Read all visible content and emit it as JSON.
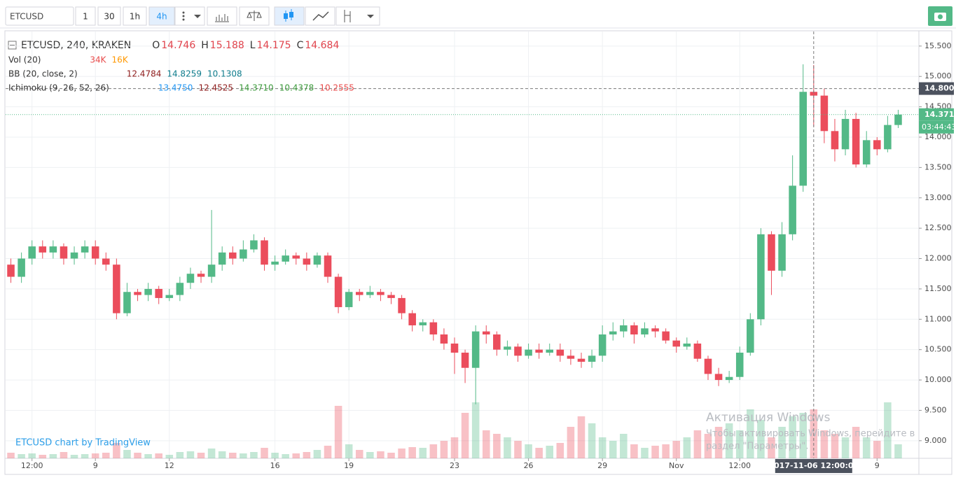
{
  "toolbar": {
    "symbol": "ETCUSD",
    "intervals": [
      "1",
      "30",
      "1h",
      "4h"
    ],
    "active_interval": 3
  },
  "chart_data": {
    "type": "candlestick",
    "title": "ETCUSD, 240, KRAKEN",
    "ohlc_letters": [
      "O",
      "H",
      "L",
      "C"
    ],
    "ohlc_values": [
      14.746,
      15.188,
      14.175,
      14.684
    ],
    "indicators": [
      {
        "name": "Vol (20)",
        "values": [
          "34K",
          "16K"
        ],
        "colors": [
          "#e84b4b",
          "#ff9800"
        ]
      },
      {
        "name": "BB (20, close, 2)",
        "values": [
          "12.4784",
          "14.8259",
          "10.1308"
        ],
        "colors": [
          "#8e1c1c",
          "#0f7c8c",
          "#0f7c8c"
        ]
      },
      {
        "name": "Ichimoku (9, 26, 52, 26)",
        "values": [
          "13.4750",
          "12.4525",
          "14.3710",
          "10.4378",
          "10.2555"
        ],
        "colors": [
          "#2196f3",
          "#8e1c1c",
          "#3c9a3c",
          "#3c9a3c",
          "#e84b4b"
        ]
      }
    ],
    "categories": [
      null,
      null,
      "12:00",
      null,
      null,
      null,
      null,
      null,
      "9",
      null,
      null,
      null,
      null,
      null,
      null,
      "12",
      null,
      null,
      null,
      null,
      null,
      null,
      null,
      null,
      null,
      "16",
      null,
      null,
      null,
      null,
      null,
      null,
      "19",
      null,
      null,
      null,
      null,
      null,
      null,
      null,
      null,
      null,
      "23",
      null,
      null,
      null,
      null,
      null,
      null,
      "26",
      null,
      null,
      null,
      null,
      null,
      null,
      "29",
      null,
      null,
      null,
      null,
      null,
      null,
      "Nov",
      null,
      null,
      null,
      null,
      null,
      "12:00",
      null,
      null,
      null,
      null,
      null,
      null,
      "2017-11-06 12:00:00",
      null,
      null,
      null,
      null,
      null,
      "9",
      null,
      null
    ],
    "open": [
      11.9,
      11.7,
      12.0,
      12.2,
      12.1,
      12.2,
      12.0,
      12.1,
      12.2,
      12.0,
      11.9,
      11.1,
      11.45,
      11.4,
      11.5,
      11.35,
      11.4,
      11.6,
      11.75,
      11.7,
      11.9,
      12.1,
      12.0,
      12.15,
      12.3,
      11.9,
      11.95,
      12.05,
      12.0,
      11.9,
      12.05,
      11.7,
      11.2,
      11.45,
      11.4,
      11.45,
      11.4,
      11.35,
      11.1,
      10.9,
      10.95,
      10.75,
      10.6,
      10.45,
      10.2,
      10.8,
      10.75,
      10.5,
      10.55,
      10.4,
      10.5,
      10.45,
      10.5,
      10.4,
      10.35,
      10.3,
      10.4,
      10.75,
      10.8,
      10.9,
      10.75,
      10.85,
      10.8,
      10.65,
      10.55,
      10.6,
      10.35,
      10.1,
      10.0,
      10.05,
      10.45,
      11.0,
      12.4,
      11.8,
      12.4,
      13.2,
      14.746,
      14.684,
      14.1,
      13.8,
      14.3,
      13.55,
      13.95,
      13.8,
      14.2
    ],
    "high": [
      12.0,
      12.1,
      12.3,
      12.3,
      12.3,
      12.25,
      12.2,
      12.3,
      12.3,
      12.1,
      12.0,
      11.6,
      11.5,
      11.6,
      11.55,
      11.5,
      11.7,
      11.85,
      11.8,
      12.8,
      12.2,
      12.2,
      12.3,
      12.4,
      12.35,
      12.05,
      12.15,
      12.1,
      12.1,
      12.1,
      12.1,
      11.75,
      11.5,
      11.5,
      11.55,
      11.5,
      11.45,
      11.4,
      11.15,
      11.0,
      11.0,
      10.85,
      10.7,
      10.5,
      10.9,
      10.9,
      10.8,
      10.65,
      10.6,
      10.6,
      10.6,
      10.6,
      10.6,
      10.5,
      10.45,
      10.5,
      10.9,
      10.95,
      11.0,
      10.95,
      10.95,
      10.9,
      10.85,
      10.7,
      10.7,
      10.65,
      10.4,
      10.2,
      10.15,
      10.55,
      11.1,
      12.5,
      12.45,
      12.6,
      13.7,
      15.2,
      15.188,
      14.8,
      14.3,
      14.45,
      14.4,
      14.1,
      14.0,
      14.35,
      14.45
    ],
    "low": [
      11.6,
      11.6,
      11.9,
      12.0,
      12.0,
      11.9,
      11.9,
      12.0,
      11.9,
      11.8,
      11.0,
      11.05,
      11.3,
      11.3,
      11.25,
      11.3,
      11.3,
      11.5,
      11.6,
      11.6,
      11.8,
      11.9,
      11.95,
      12.1,
      11.8,
      11.8,
      11.9,
      11.9,
      11.8,
      11.85,
      11.6,
      11.1,
      11.15,
      11.3,
      11.35,
      11.3,
      11.25,
      11.0,
      10.8,
      10.8,
      10.65,
      10.5,
      10.1,
      9.95,
      9.6,
      10.6,
      10.4,
      10.4,
      10.3,
      10.35,
      10.35,
      10.4,
      10.3,
      10.25,
      10.2,
      10.2,
      10.3,
      10.65,
      10.7,
      10.6,
      10.7,
      10.7,
      10.6,
      10.45,
      10.5,
      10.3,
      10.0,
      9.9,
      9.95,
      10.0,
      10.4,
      10.9,
      11.4,
      11.7,
      12.3,
      13.1,
      14.175,
      13.9,
      13.6,
      13.7,
      13.5,
      13.5,
      13.7,
      13.75,
      14.15
    ],
    "close": [
      11.7,
      12.0,
      12.2,
      12.1,
      12.2,
      12.0,
      12.1,
      12.2,
      12.0,
      11.9,
      11.1,
      11.45,
      11.4,
      11.5,
      11.35,
      11.4,
      11.6,
      11.75,
      11.7,
      11.9,
      12.1,
      12.0,
      12.15,
      12.3,
      11.9,
      11.95,
      12.05,
      12.0,
      11.9,
      12.05,
      11.7,
      11.2,
      11.45,
      11.4,
      11.45,
      11.4,
      11.35,
      11.1,
      10.9,
      10.95,
      10.75,
      10.6,
      10.45,
      10.2,
      10.8,
      10.75,
      10.5,
      10.55,
      10.4,
      10.5,
      10.45,
      10.5,
      10.4,
      10.35,
      10.3,
      10.4,
      10.75,
      10.8,
      10.9,
      10.75,
      10.85,
      10.8,
      10.65,
      10.55,
      10.6,
      10.35,
      10.1,
      10.0,
      10.05,
      10.45,
      11.0,
      12.4,
      11.8,
      12.4,
      13.2,
      14.746,
      14.684,
      14.1,
      13.8,
      14.3,
      13.55,
      13.95,
      13.8,
      14.2,
      14.371
    ],
    "volume": [
      8000,
      6000,
      7000,
      5000,
      6000,
      9000,
      5000,
      6000,
      7000,
      8000,
      22000,
      12000,
      8000,
      6000,
      7000,
      5000,
      9000,
      10000,
      8000,
      14000,
      10000,
      8000,
      7000,
      9000,
      15000,
      8000,
      6000,
      7000,
      9000,
      12000,
      18000,
      75000,
      20000,
      12000,
      9000,
      10000,
      8000,
      14000,
      16000,
      15000,
      20000,
      25000,
      30000,
      65000,
      80000,
      40000,
      35000,
      30000,
      25000,
      20000,
      15000,
      18000,
      22000,
      45000,
      60000,
      50000,
      30000,
      25000,
      35000,
      20000,
      15000,
      18000,
      20000,
      25000,
      30000,
      40000,
      35000,
      45000,
      50000,
      40000,
      70000,
      55000,
      30000,
      45000,
      60000,
      65000,
      70000,
      40000,
      35000,
      30000,
      45000,
      30000,
      25000,
      80000,
      20000
    ],
    "volume_lim": [
      0,
      120000
    ],
    "up_color": "#53b987",
    "down_color": "#eb4d5c",
    "ylim": [
      8.71,
      15.74
    ],
    "yticks": [
      {
        "value": 9.0,
        "label": "9.000"
      },
      {
        "value": 9.5,
        "label": "9.500"
      },
      {
        "value": 10.0,
        "label": "10.000"
      },
      {
        "value": 10.5,
        "label": "10.500"
      },
      {
        "value": 11.0,
        "label": "11.000"
      },
      {
        "value": 11.5,
        "label": "11.500"
      },
      {
        "value": 12.0,
        "label": "12.000"
      },
      {
        "value": 12.5,
        "label": "12.500"
      },
      {
        "value": 13.0,
        "label": "13.000"
      },
      {
        "value": 13.5,
        "label": "13.500"
      },
      {
        "value": 14.0,
        "label": "14.000"
      },
      {
        "value": 14.5,
        "label": "14.500"
      },
      {
        "value": 15.0,
        "label": "15.000"
      },
      {
        "value": 15.5,
        "label": "15.500"
      }
    ],
    "grid": true,
    "crosshair": {
      "value": 14.8,
      "label": "14.800",
      "category_index": 76
    },
    "last_price": {
      "value": 14.371,
      "label": "14.371",
      "countdown": "03:44:43"
    },
    "watermark": "ETCUSD chart by TradingView"
  },
  "os_overlay": {
    "title": "Активация Windows",
    "lines": [
      "Чтобы активировать Windows, перейдите в",
      "раздел \"Параметры\"."
    ]
  }
}
